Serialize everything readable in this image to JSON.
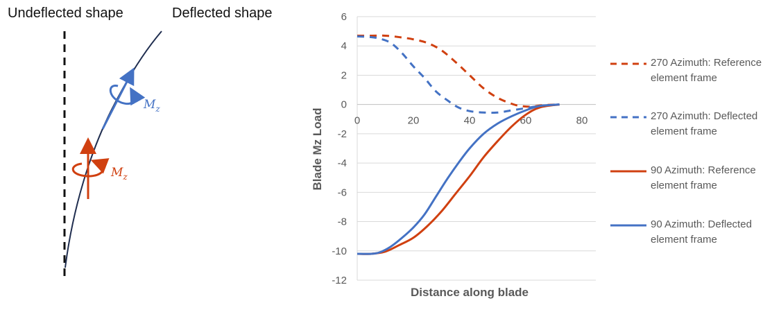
{
  "diagram": {
    "undeflected_label": "Undeflected shape",
    "deflected_label": "Deflected shape",
    "moment_label_blue": "M",
    "moment_label_blue_sub": "z",
    "moment_label_red": "M",
    "moment_label_red_sub": "z",
    "colors": {
      "blade": "#1f2d4f",
      "deflected_frame": "#4472C4",
      "reference_frame": "#D04010",
      "undeflected": "#111111"
    }
  },
  "chart_data": {
    "type": "line",
    "title": "",
    "xlabel": "Distance along blade",
    "ylabel": "Blade Mz Load",
    "xlim": [
      0,
      80
    ],
    "ylim": [
      -12,
      6
    ],
    "xticks": [
      "0",
      "20",
      "40",
      "60",
      "80"
    ],
    "yticks": [
      "6",
      "4",
      "2",
      "0",
      "-2",
      "-4",
      "-6",
      "-8",
      "-10",
      "-12"
    ],
    "grid": "horizontal",
    "legend_position": "right",
    "series": [
      {
        "name": "270 Azimuth: Reference element frame",
        "color": "#D04010",
        "dash": true,
        "x": [
          0,
          5,
          10,
          15,
          20,
          25,
          30,
          35,
          40,
          45,
          50,
          55,
          58,
          62,
          66,
          72
        ],
        "y": [
          4.7,
          4.7,
          4.7,
          4.6,
          4.45,
          4.2,
          3.7,
          2.9,
          2.0,
          1.1,
          0.45,
          0.05,
          -0.1,
          -0.15,
          -0.05,
          0
        ]
      },
      {
        "name": "270 Azimuth: Deflected element frame",
        "color": "#4472C4",
        "dash": true,
        "x": [
          0,
          5,
          8,
          12,
          16,
          20,
          24,
          28,
          32,
          36,
          40,
          45,
          50,
          55,
          60,
          65,
          72
        ],
        "y": [
          4.65,
          4.6,
          4.5,
          4.2,
          3.5,
          2.6,
          1.8,
          0.9,
          0.3,
          -0.2,
          -0.45,
          -0.55,
          -0.55,
          -0.4,
          -0.25,
          -0.1,
          0
        ]
      },
      {
        "name": "90 Azimuth: Reference element frame",
        "color": "#D04010",
        "dash": false,
        "x": [
          0,
          5,
          10,
          15,
          20,
          25,
          30,
          35,
          40,
          45,
          50,
          55,
          60,
          65,
          72
        ],
        "y": [
          -10.2,
          -10.2,
          -10.05,
          -9.6,
          -9.1,
          -8.3,
          -7.3,
          -6.1,
          -4.9,
          -3.6,
          -2.5,
          -1.5,
          -0.7,
          -0.2,
          0
        ]
      },
      {
        "name": "90 Azimuth: Deflected element frame",
        "color": "#4472C4",
        "dash": false,
        "x": [
          0,
          5,
          8,
          12,
          16,
          20,
          24,
          28,
          32,
          36,
          40,
          45,
          50,
          55,
          60,
          65,
          72
        ],
        "y": [
          -10.2,
          -10.2,
          -10.1,
          -9.7,
          -9.1,
          -8.4,
          -7.5,
          -6.3,
          -5.1,
          -4.0,
          -3.0,
          -2.0,
          -1.3,
          -0.8,
          -0.4,
          -0.1,
          0
        ]
      }
    ]
  }
}
